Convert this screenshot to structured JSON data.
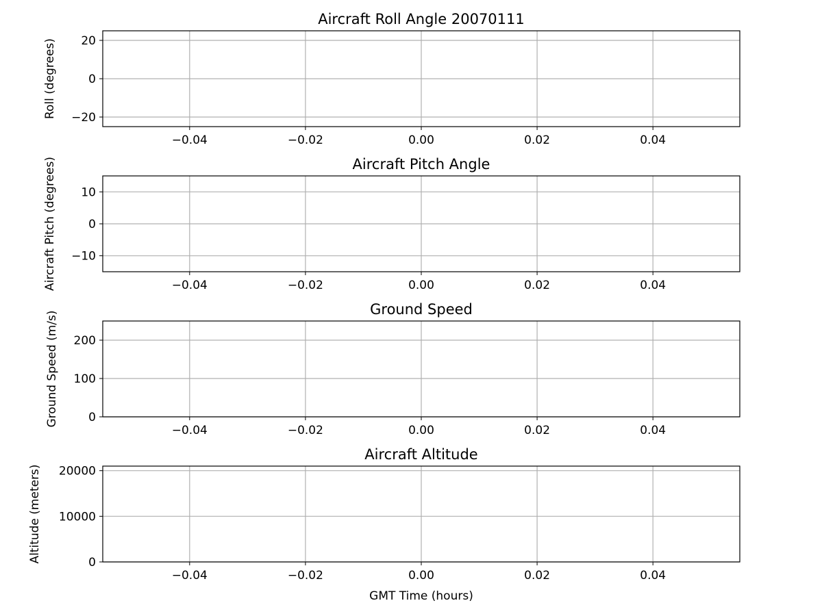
{
  "chart_data": [
    {
      "type": "line",
      "title": "Aircraft Roll Angle 20070111",
      "xlabel": "",
      "ylabel": "Roll (degrees)",
      "xlim": [
        -0.055,
        0.055
      ],
      "ylim": [
        -25,
        25
      ],
      "xticks": [
        -0.04,
        -0.02,
        0.0,
        0.02,
        0.04
      ],
      "xtick_labels": [
        "−0.04",
        "−0.02",
        "0.00",
        "0.02",
        "0.04"
      ],
      "yticks": [
        -20,
        0,
        20
      ],
      "ytick_labels": [
        "−20",
        "0",
        "20"
      ],
      "grid": true,
      "series": []
    },
    {
      "type": "line",
      "title": "Aircraft Pitch Angle",
      "xlabel": "",
      "ylabel": "Aircraft Pitch (degrees)",
      "xlim": [
        -0.055,
        0.055
      ],
      "ylim": [
        -15,
        15
      ],
      "xticks": [
        -0.04,
        -0.02,
        0.0,
        0.02,
        0.04
      ],
      "xtick_labels": [
        "−0.04",
        "−0.02",
        "0.00",
        "0.02",
        "0.04"
      ],
      "yticks": [
        -10,
        0,
        10
      ],
      "ytick_labels": [
        "−10",
        "0",
        "10"
      ],
      "grid": true,
      "series": []
    },
    {
      "type": "line",
      "title": "Ground Speed",
      "xlabel": "",
      "ylabel": "Ground Speed (m/s)",
      "xlim": [
        -0.055,
        0.055
      ],
      "ylim": [
        0,
        250
      ],
      "xticks": [
        -0.04,
        -0.02,
        0.0,
        0.02,
        0.04
      ],
      "xtick_labels": [
        "−0.04",
        "−0.02",
        "0.00",
        "0.02",
        "0.04"
      ],
      "yticks": [
        0,
        100,
        200
      ],
      "ytick_labels": [
        "0",
        "100",
        "200"
      ],
      "grid": true,
      "series": []
    },
    {
      "type": "line",
      "title": "Aircraft Altitude",
      "xlabel": "GMT Time (hours)",
      "ylabel": "Altitude (meters)",
      "xlim": [
        -0.055,
        0.055
      ],
      "ylim": [
        0,
        21000
      ],
      "xticks": [
        -0.04,
        -0.02,
        0.0,
        0.02,
        0.04
      ],
      "xtick_labels": [
        "−0.04",
        "−0.02",
        "0.00",
        "0.02",
        "0.04"
      ],
      "yticks": [
        0,
        10000,
        20000
      ],
      "ytick_labels": [
        "0",
        "10000",
        "20000"
      ],
      "grid": true,
      "series": []
    }
  ],
  "colors": {
    "grid": "#b0b0b0",
    "axes": "#000000",
    "background": "#ffffff"
  }
}
